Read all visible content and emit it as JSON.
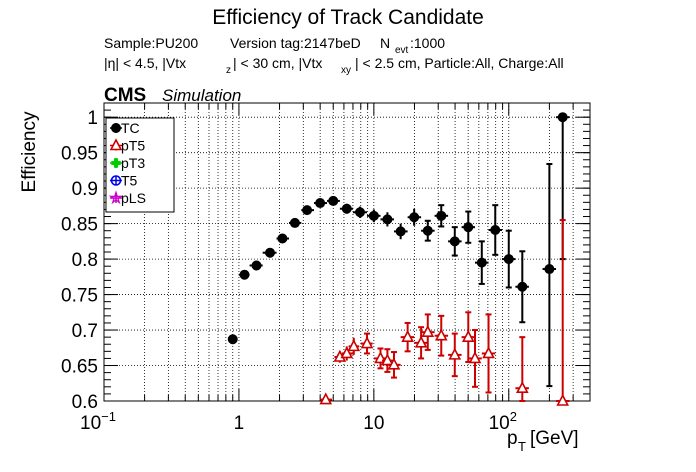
{
  "chart_data": {
    "type": "scatter",
    "title": "Efficiency of Track Candidate",
    "subtitle1": {
      "sample": "Sample:PU200",
      "version": "Version tag:2147beD",
      "nevt_main": "N",
      "nevt_sub": "evt",
      "nevt_val": ":1000"
    },
    "subtitle2": {
      "eta": "|η| < 4.5, |Vtx",
      "z_sub": "z",
      "mid": "| < 30 cm, |Vtx",
      "xy_sub": "xy",
      "rest": "| < 2.5 cm, Particle:All, Charge:All"
    },
    "cms_label": "CMS",
    "cms_sub": "Simulation",
    "ylabel": "Efficiency",
    "xlabel_main": "p",
    "xlabel_sub": "T",
    "xlabel_unit": " [GeV]",
    "x_scale": "log",
    "xlim": [
      0.1,
      400
    ],
    "ylim": [
      0.6,
      1.02
    ],
    "grid": true,
    "legend_position": "top-left",
    "x_ticks": [
      {
        "value": 0.1,
        "base": "10",
        "exp": "−1"
      },
      {
        "value": 1,
        "base": "1",
        "exp": ""
      },
      {
        "value": 10,
        "base": "10",
        "exp": ""
      },
      {
        "value": 100,
        "base": "10",
        "exp": "2"
      }
    ],
    "y_ticks": [
      {
        "value": 0.6,
        "label": "0.6"
      },
      {
        "value": 0.65,
        "label": "0.65"
      },
      {
        "value": 0.7,
        "label": "0.7"
      },
      {
        "value": 0.75,
        "label": "0.75"
      },
      {
        "value": 0.8,
        "label": "0.8"
      },
      {
        "value": 0.85,
        "label": "0.85"
      },
      {
        "value": 0.9,
        "label": "0.9"
      },
      {
        "value": 0.95,
        "label": "0.95"
      },
      {
        "value": 1,
        "label": "1"
      }
    ],
    "series": [
      {
        "name": "TC",
        "color": "#000000",
        "marker": "filled-circle",
        "points": [
          {
            "x": 0.9,
            "y": 0.687,
            "xlo": 0.85,
            "xhi": 0.95,
            "elo": 0.004,
            "ehi": 0.004
          },
          {
            "x": 1.1,
            "y": 0.778,
            "xlo": 1.0,
            "xhi": 1.2,
            "elo": 0.004,
            "ehi": 0.004
          },
          {
            "x": 1.35,
            "y": 0.791,
            "xlo": 1.2,
            "xhi": 1.5,
            "elo": 0.004,
            "ehi": 0.004
          },
          {
            "x": 1.7,
            "y": 0.809,
            "xlo": 1.5,
            "xhi": 1.9,
            "elo": 0.004,
            "ehi": 0.004
          },
          {
            "x": 2.1,
            "y": 0.829,
            "xlo": 1.9,
            "xhi": 2.35,
            "elo": 0.004,
            "ehi": 0.004
          },
          {
            "x": 2.6,
            "y": 0.851,
            "xlo": 2.35,
            "xhi": 2.9,
            "elo": 0.004,
            "ehi": 0.004
          },
          {
            "x": 3.2,
            "y": 0.869,
            "xlo": 2.9,
            "xhi": 3.6,
            "elo": 0.004,
            "ehi": 0.004
          },
          {
            "x": 4.0,
            "y": 0.879,
            "xlo": 3.6,
            "xhi": 4.5,
            "elo": 0.005,
            "ehi": 0.005
          },
          {
            "x": 5.0,
            "y": 0.882,
            "xlo": 4.5,
            "xhi": 5.6,
            "elo": 0.006,
            "ehi": 0.006
          },
          {
            "x": 6.3,
            "y": 0.871,
            "xlo": 5.6,
            "xhi": 7.0,
            "elo": 0.007,
            "ehi": 0.007
          },
          {
            "x": 7.9,
            "y": 0.866,
            "xlo": 7.0,
            "xhi": 8.9,
            "elo": 0.008,
            "ehi": 0.008
          },
          {
            "x": 10.0,
            "y": 0.861,
            "xlo": 8.9,
            "xhi": 11.2,
            "elo": 0.009,
            "ehi": 0.009
          },
          {
            "x": 12.6,
            "y": 0.856,
            "xlo": 11.2,
            "xhi": 14.1,
            "elo": 0.01,
            "ehi": 0.01
          },
          {
            "x": 15.8,
            "y": 0.839,
            "xlo": 14.1,
            "xhi": 17.8,
            "elo": 0.011,
            "ehi": 0.011
          },
          {
            "x": 19.9,
            "y": 0.859,
            "xlo": 17.8,
            "xhi": 22.4,
            "elo": 0.012,
            "ehi": 0.012
          },
          {
            "x": 25.1,
            "y": 0.84,
            "xlo": 22.4,
            "xhi": 28.2,
            "elo": 0.014,
            "ehi": 0.014
          },
          {
            "x": 31.6,
            "y": 0.861,
            "xlo": 28.2,
            "xhi": 35.5,
            "elo": 0.015,
            "ehi": 0.015
          },
          {
            "x": 39.8,
            "y": 0.825,
            "xlo": 35.5,
            "xhi": 44.7,
            "elo": 0.02,
            "ehi": 0.02
          },
          {
            "x": 50.1,
            "y": 0.845,
            "xlo": 44.7,
            "xhi": 56.2,
            "elo": 0.022,
            "ehi": 0.022
          },
          {
            "x": 63.1,
            "y": 0.795,
            "xlo": 56.2,
            "xhi": 70.8,
            "elo": 0.03,
            "ehi": 0.03
          },
          {
            "x": 79.4,
            "y": 0.841,
            "xlo": 70.8,
            "xhi": 89.1,
            "elo": 0.035,
            "ehi": 0.035
          },
          {
            "x": 100,
            "y": 0.8,
            "xlo": 89.1,
            "xhi": 112,
            "elo": 0.04,
            "ehi": 0.04
          },
          {
            "x": 126,
            "y": 0.761,
            "xlo": 112,
            "xhi": 141,
            "elo": 0.05,
            "ehi": 0.05
          },
          {
            "x": 200,
            "y": 0.786,
            "xlo": 178,
            "xhi": 224,
            "elo": 0.165,
            "ehi": 0.148
          },
          {
            "x": 251,
            "y": 1.0,
            "xlo": 224,
            "xhi": 282,
            "elo": 0.2,
            "ehi": 0.0
          }
        ]
      },
      {
        "name": "pT5",
        "color": "#cc0000",
        "marker": "open-triangle",
        "points": [
          {
            "x": 4.4,
            "y": 0.602,
            "xlo": 4.0,
            "xhi": 4.9,
            "elo": 0.004,
            "ehi": 0.004
          },
          {
            "x": 5.6,
            "y": 0.662,
            "xlo": 5.1,
            "xhi": 6.2,
            "elo": 0.008,
            "ehi": 0.008
          },
          {
            "x": 6.3,
            "y": 0.667,
            "xlo": 5.8,
            "xhi": 7.0,
            "elo": 0.01,
            "ehi": 0.01
          },
          {
            "x": 7.1,
            "y": 0.677,
            "xlo": 6.5,
            "xhi": 7.8,
            "elo": 0.012,
            "ehi": 0.012
          },
          {
            "x": 8.9,
            "y": 0.681,
            "xlo": 8.0,
            "xhi": 9.8,
            "elo": 0.014,
            "ehi": 0.014
          },
          {
            "x": 11.2,
            "y": 0.66,
            "xlo": 10.0,
            "xhi": 12.5,
            "elo": 0.014,
            "ehi": 0.014
          },
          {
            "x": 12.6,
            "y": 0.657,
            "xlo": 11.5,
            "xhi": 14.1,
            "elo": 0.016,
            "ehi": 0.016
          },
          {
            "x": 14.1,
            "y": 0.651,
            "xlo": 12.6,
            "xhi": 15.8,
            "elo": 0.018,
            "ehi": 0.018
          },
          {
            "x": 17.8,
            "y": 0.69,
            "xlo": 15.8,
            "xhi": 19.9,
            "elo": 0.02,
            "ehi": 0.02
          },
          {
            "x": 22.4,
            "y": 0.682,
            "xlo": 19.9,
            "xhi": 25.1,
            "elo": 0.022,
            "ehi": 0.022
          },
          {
            "x": 25.1,
            "y": 0.697,
            "xlo": 22.4,
            "xhi": 28.2,
            "elo": 0.025,
            "ehi": 0.025
          },
          {
            "x": 31.6,
            "y": 0.692,
            "xlo": 28.2,
            "xhi": 35.5,
            "elo": 0.028,
            "ehi": 0.028
          },
          {
            "x": 39.8,
            "y": 0.665,
            "xlo": 35.5,
            "xhi": 44.7,
            "elo": 0.03,
            "ehi": 0.03
          },
          {
            "x": 50.1,
            "y": 0.69,
            "xlo": 44.7,
            "xhi": 56.2,
            "elo": 0.035,
            "ehi": 0.035
          },
          {
            "x": 56.2,
            "y": 0.66,
            "xlo": 50.1,
            "xhi": 63.1,
            "elo": 0.04,
            "ehi": 0.04
          },
          {
            "x": 70.8,
            "y": 0.667,
            "xlo": 63.1,
            "xhi": 79.4,
            "elo": 0.055,
            "ehi": 0.055
          },
          {
            "x": 126,
            "y": 0.618,
            "xlo": 112,
            "xhi": 141,
            "elo": 0.018,
            "ehi": 0.072
          },
          {
            "x": 251,
            "y": 0.6,
            "xlo": 224,
            "xhi": 282,
            "elo": 0.0,
            "ehi": 0.255
          }
        ]
      },
      {
        "name": "pT3",
        "color": "#00cc00",
        "marker": "filled-cross",
        "points": []
      },
      {
        "name": "T5",
        "color": "#0000ee",
        "marker": "open-circle",
        "points": []
      },
      {
        "name": "pLS",
        "color": "#cc00cc",
        "marker": "open-star",
        "points": []
      }
    ]
  }
}
